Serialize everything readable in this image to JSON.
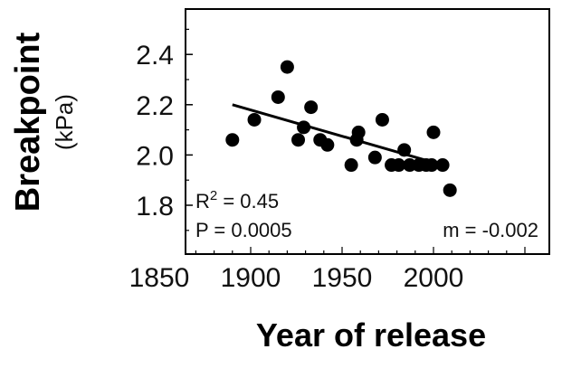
{
  "chart_data": {
    "type": "scatter",
    "title": "",
    "xlabel": "Year of release",
    "ylabel": "Breakpoint",
    "ylabel_unit": "(kPa)",
    "xlim": [
      1850,
      2050
    ],
    "ylim": [
      1.7,
      2.6
    ],
    "xticks": [
      1850,
      1900,
      1950,
      2000
    ],
    "xtick_labels": [
      "1850",
      "1900",
      "1950",
      "2000"
    ],
    "yticks": [
      1.8,
      2.0,
      2.2,
      2.4
    ],
    "ytick_labels": [
      "1.8",
      "2.0",
      "2.2",
      "2.4"
    ],
    "grid": false,
    "legend": "none",
    "points": [
      {
        "x": 1890,
        "y": 2.06
      },
      {
        "x": 1902,
        "y": 2.14
      },
      {
        "x": 1915,
        "y": 2.23
      },
      {
        "x": 1920,
        "y": 2.35
      },
      {
        "x": 1926,
        "y": 2.06
      },
      {
        "x": 1929,
        "y": 2.11
      },
      {
        "x": 1933,
        "y": 2.19
      },
      {
        "x": 1938,
        "y": 2.06
      },
      {
        "x": 1942,
        "y": 2.04
      },
      {
        "x": 1955,
        "y": 1.96
      },
      {
        "x": 1958,
        "y": 2.06
      },
      {
        "x": 1959,
        "y": 2.09
      },
      {
        "x": 1968,
        "y": 1.99
      },
      {
        "x": 1972,
        "y": 2.14
      },
      {
        "x": 1977,
        "y": 1.96
      },
      {
        "x": 1981,
        "y": 1.96
      },
      {
        "x": 1984,
        "y": 2.02
      },
      {
        "x": 1987,
        "y": 1.96
      },
      {
        "x": 1992,
        "y": 1.96
      },
      {
        "x": 1996,
        "y": 1.96
      },
      {
        "x": 1999,
        "y": 1.96
      },
      {
        "x": 2000,
        "y": 2.09
      },
      {
        "x": 2005,
        "y": 1.96
      },
      {
        "x": 2009,
        "y": 1.86
      }
    ],
    "trendline": {
      "x": [
        1890,
        2005
      ],
      "y": [
        2.2,
        1.96
      ]
    },
    "annotations": {
      "r2_prefix": "R",
      "r2_sup": "2",
      "r2_suffix": " = 0.45",
      "p_text": "P = 0.0005",
      "m_text": "m = -0.002"
    },
    "colors": {
      "marker": "#000000",
      "line": "#000000",
      "axes": "#000000"
    }
  }
}
